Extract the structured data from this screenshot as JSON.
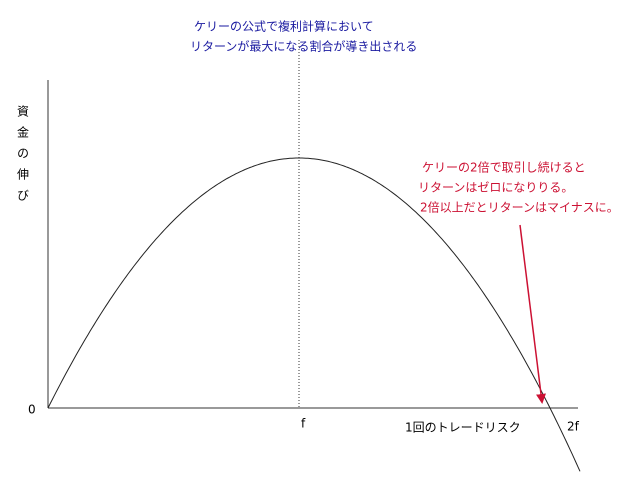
{
  "title": {
    "lines": [
      "ケリーの公式で複利計算において",
      "リターンが最大になる割合が導き出される"
    ]
  },
  "axes": {
    "y_label": "資金の伸び",
    "origin": "0",
    "f_label": "f",
    "two_f_label": "2f",
    "x_label": "1回のトレードリスク"
  },
  "annotation": {
    "lines": [
      "ケリーの2倍で取引し続けると",
      "リターンはゼロになりりる。",
      "2倍以上だとリターンはマイナスに。"
    ]
  }
}
